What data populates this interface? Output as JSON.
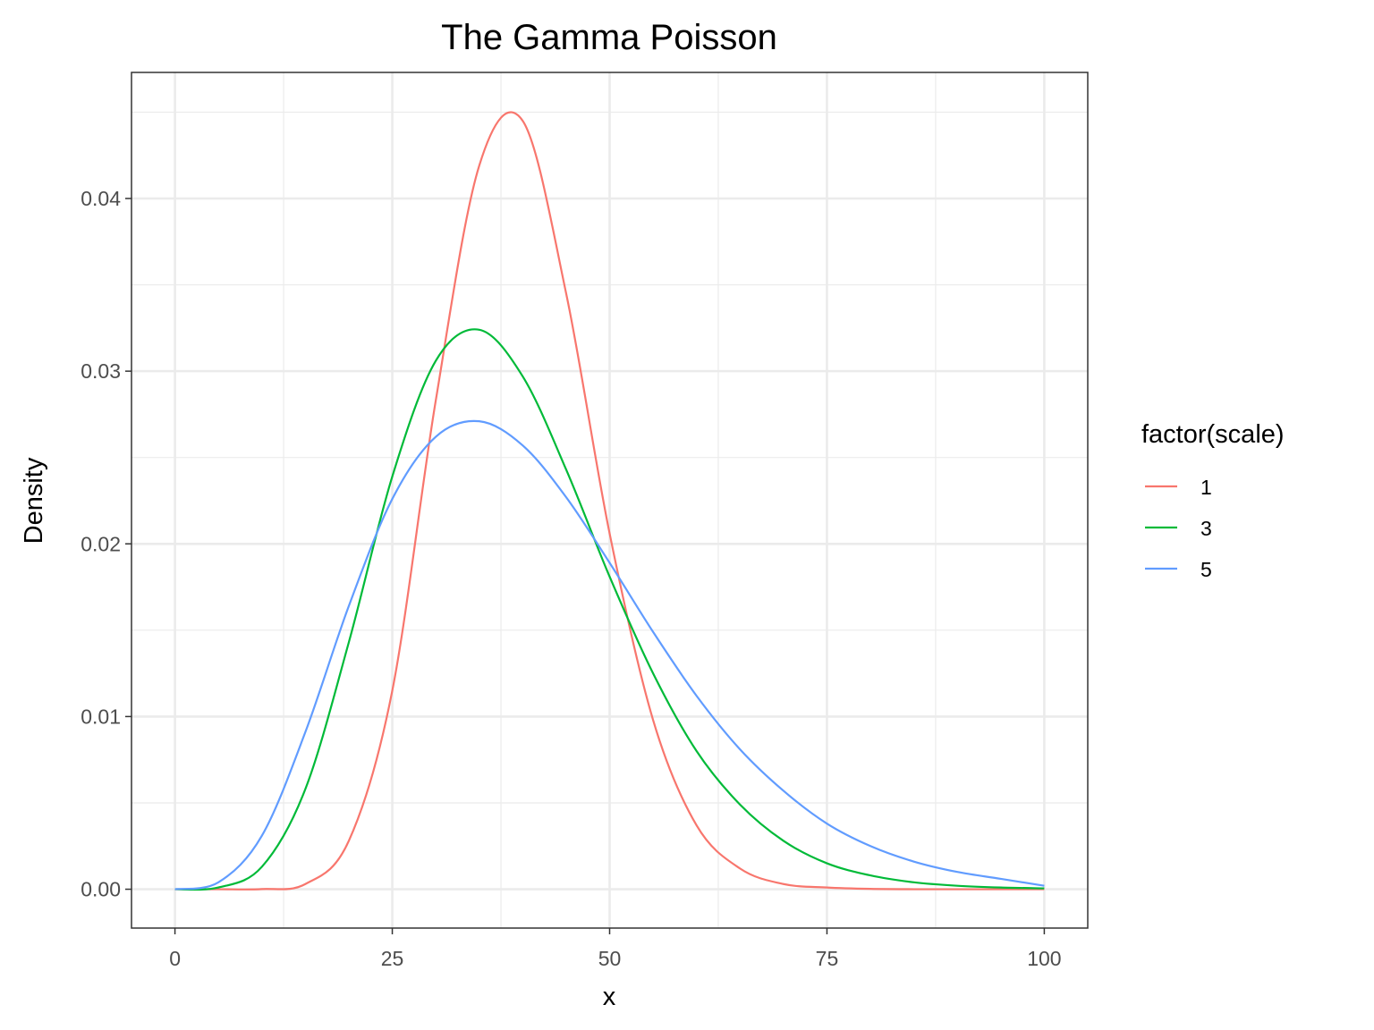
{
  "chart_data": {
    "type": "line",
    "title": "The Gamma Poisson",
    "xlabel": "x",
    "ylabel": "Density",
    "xlim": [
      -5,
      105
    ],
    "ylim": [
      -0.00225,
      0.0473
    ],
    "x_ticks": [
      0,
      25,
      50,
      75,
      100
    ],
    "x_tick_labels": [
      "0",
      "25",
      "50",
      "75",
      "100"
    ],
    "y_ticks": [
      0,
      0.01,
      0.02,
      0.03,
      0.04
    ],
    "y_tick_labels": [
      "0.00",
      "0.01",
      "0.02",
      "0.03",
      "0.04"
    ],
    "grid": true,
    "legend": {
      "title": "factor(scale)",
      "position": "right"
    },
    "x": [
      0,
      5,
      10,
      15,
      20,
      25,
      30,
      35,
      40,
      45,
      50,
      55,
      60,
      65,
      70,
      75,
      80,
      85,
      90,
      95,
      100
    ],
    "series": [
      {
        "name": "1",
        "color": "#F8766D",
        "values": [
          0,
          0,
          1e-05,
          0.0003,
          0.0028,
          0.0115,
          0.0283,
          0.0419,
          0.0445,
          0.0345,
          0.0206,
          0.0098,
          0.0037,
          0.0012,
          0.0003,
          0.0001,
          2e-05,
          0,
          0,
          0,
          0
        ]
      },
      {
        "name": "3",
        "color": "#00BA38",
        "values": [
          0,
          0.0001,
          0.0013,
          0.0058,
          0.0143,
          0.0239,
          0.0306,
          0.0324,
          0.0297,
          0.0243,
          0.0181,
          0.0125,
          0.008,
          0.0049,
          0.0028,
          0.0015,
          0.0008,
          0.0004,
          0.0002,
          0.0001,
          5e-05
        ]
      },
      {
        "name": "5",
        "color": "#619CFF",
        "values": [
          0,
          0.0004,
          0.0031,
          0.0091,
          0.0164,
          0.0226,
          0.0262,
          0.0271,
          0.0257,
          0.0227,
          0.0189,
          0.0149,
          0.0112,
          0.0081,
          0.0057,
          0.0038,
          0.0025,
          0.0016,
          0.001,
          0.0006,
          0.0002
        ]
      }
    ]
  }
}
